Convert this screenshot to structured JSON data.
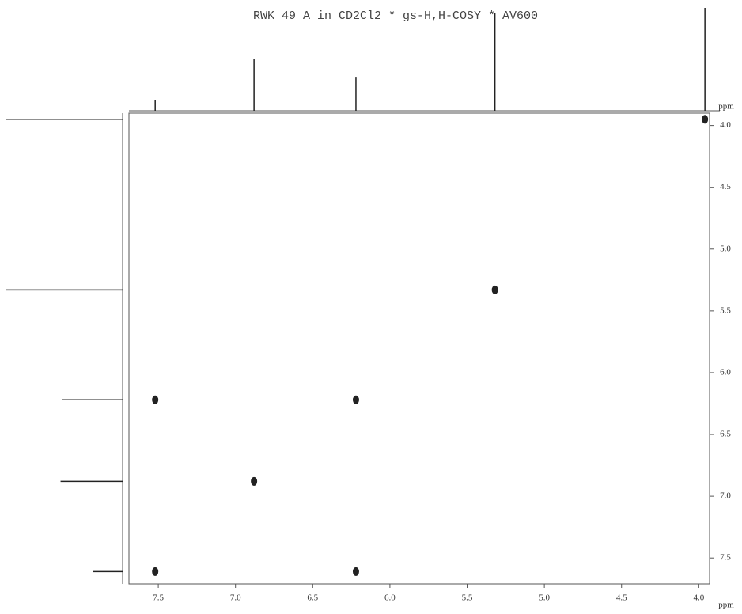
{
  "chart_data": {
    "type": "scatter",
    "title": "RWK 49 A in CD2Cl2 * gs-H,H-COSY * AV600",
    "xlabel": "ppm",
    "ylabel": "ppm",
    "xlim": [
      7.69,
      3.93
    ],
    "ylim": [
      3.9,
      7.71
    ],
    "xticks": [
      7.5,
      {
        "value": 7,
        "label": "7.0"
      },
      6.5,
      {
        "value": 6,
        "label": "6.0"
      },
      5.5,
      {
        "value": 5,
        "label": "5.0"
      },
      4.5,
      {
        "value": 4,
        "label": "4.0"
      }
    ],
    "yticks": [
      {
        "value": 4,
        "label": "4.0"
      },
      4.5,
      {
        "value": 5,
        "label": "5.0"
      },
      5.5,
      {
        "value": 6,
        "label": "6.0"
      },
      6.5,
      {
        "value": 7,
        "label": "7.0"
      },
      7.5
    ],
    "color": "#222222",
    "x": [
      7.52,
      6.22,
      6.88,
      5.32,
      3.96,
      7.52,
      6.22
    ],
    "values": [
      6.22,
      6.22,
      6.88,
      5.33,
      3.95,
      7.61,
      7.61
    ],
    "top_projection": {
      "ppm": [
        7.52,
        6.88,
        6.22,
        5.32,
        3.96
      ],
      "intensity": [
        10,
        50,
        33,
        95,
        100
      ]
    },
    "left_projection": {
      "ppm": [
        3.95,
        5.33,
        6.22,
        6.88,
        7.61
      ],
      "intensity": [
        100,
        100,
        52,
        53,
        25
      ]
    }
  }
}
